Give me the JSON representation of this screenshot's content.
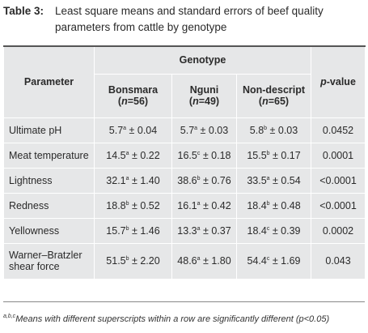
{
  "caption": {
    "label": "Table 3:",
    "text": "Least square means and standard errors of beef quality parameters from cattle by genotype"
  },
  "header": {
    "parameter": "Parameter",
    "genotype": "Genotype",
    "pvalue_p": "p",
    "pvalue_rest": "-value",
    "groups": [
      {
        "name": "Bonsmara",
        "n_label": "(",
        "n_var": "n",
        "n_value": "=56)"
      },
      {
        "name": "Nguni",
        "n_label": "(",
        "n_var": "n",
        "n_value": "=49)"
      },
      {
        "name": "Non-descript",
        "n_label": "(",
        "n_var": "n",
        "n_value": "=65)"
      }
    ]
  },
  "rows": [
    {
      "parameter": "Ultimate pH",
      "cells": [
        {
          "mean": "5.7",
          "sup": "a",
          "se": " ± 0.04"
        },
        {
          "mean": "5.7",
          "sup": "a",
          "se": " ± 0.03"
        },
        {
          "mean": "5.8",
          "sup": "b",
          "se": " ± 0.03"
        }
      ],
      "p": "0.0452"
    },
    {
      "parameter": "Meat temperature",
      "cells": [
        {
          "mean": "14.5",
          "sup": "a",
          "se": " ± 0.22"
        },
        {
          "mean": "16.5",
          "sup": "c",
          "se": " ± 0.18"
        },
        {
          "mean": "15.5",
          "sup": "b",
          "se": " ± 0.17"
        }
      ],
      "p": "0.0001"
    },
    {
      "parameter": "Lightness",
      "cells": [
        {
          "mean": "32.1",
          "sup": "a",
          "se": " ± 1.40"
        },
        {
          "mean": "38.6",
          "sup": "b",
          "se": " ± 0.76"
        },
        {
          "mean": "33.5",
          "sup": "a",
          "se": " ± 0.54"
        }
      ],
      "p": "<0.0001"
    },
    {
      "parameter": "Redness",
      "cells": [
        {
          "mean": "18.8",
          "sup": "b",
          "se": " ± 0.52"
        },
        {
          "mean": "16.1",
          "sup": "a",
          "se": " ± 0.42"
        },
        {
          "mean": "18.4",
          "sup": "b",
          "se": " ± 0.48"
        }
      ],
      "p": "<0.0001"
    },
    {
      "parameter": "Yellowness",
      "cells": [
        {
          "mean": "15.7",
          "sup": "b",
          "se": " ± 1.46"
        },
        {
          "mean": "13.3",
          "sup": "a",
          "se": " ± 0.37"
        },
        {
          "mean": "18.4",
          "sup": "c",
          "se": " ± 0.39"
        }
      ],
      "p": "0.0002"
    },
    {
      "parameter": "Warner–Bratzler shear force",
      "cells": [
        {
          "mean": "51.5",
          "sup": "b",
          "se": " ± 2.20"
        },
        {
          "mean": "48.6",
          "sup": "a",
          "se": " ± 1.80"
        },
        {
          "mean": "54.4",
          "sup": "c",
          "se": " ± 1.69"
        }
      ],
      "p": "0.043"
    }
  ],
  "footnote": {
    "sup": "a,b,c",
    "text": "Means with different superscripts within a row are significantly different (p<0.05)"
  }
}
